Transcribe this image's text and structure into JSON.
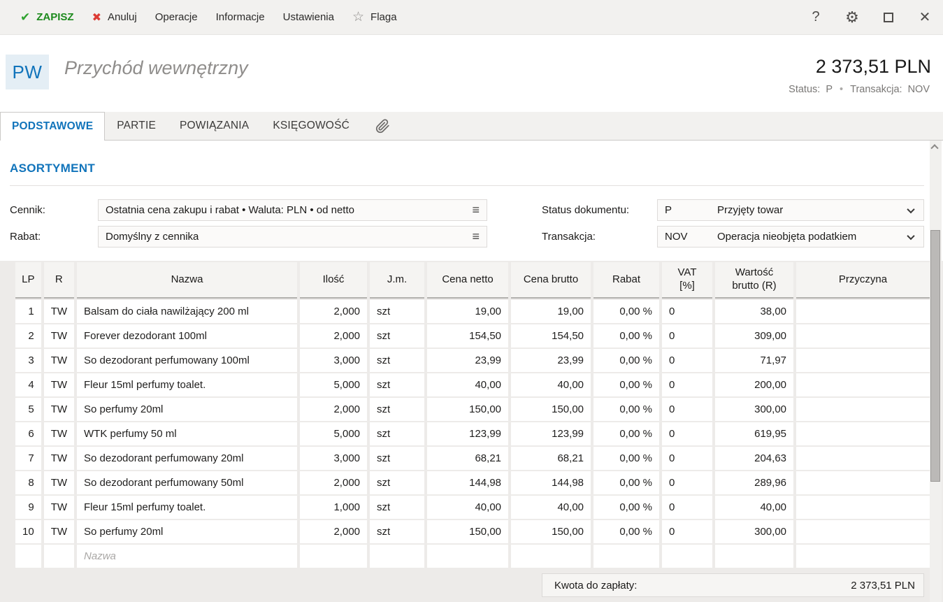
{
  "topbar": {
    "save": "ZAPISZ",
    "cancel": "Anuluj",
    "operations": "Operacje",
    "information": "Informacje",
    "settings": "Ustawienia",
    "flag": "Flaga",
    "check_icon": "✔",
    "x_icon": "✖",
    "star_icon": "☆",
    "help": "?",
    "gear_icon": "⚙",
    "close_icon": "✕"
  },
  "header": {
    "doc_type_badge": "PW",
    "title": "Przychód wewnętrzny",
    "amount": "2 373,51 PLN",
    "status_label": "Status:",
    "status_value": "P",
    "dot": "•",
    "transaction_label": "Transakcja:",
    "transaction_value": "NOV"
  },
  "tabs": [
    {
      "label": "PODSTAWOWE",
      "active": true
    },
    {
      "label": "PARTIE",
      "active": false
    },
    {
      "label": "POWIĄZANIA",
      "active": false
    },
    {
      "label": "KSIĘGOWOŚĆ",
      "active": false
    }
  ],
  "section_title": "ASORTYMENT",
  "form": {
    "cennik_label": "Cennik:",
    "cennik_value": "Ostatnia cena zakupu i rabat  • Waluta: PLN • od netto",
    "rabat_label": "Rabat:",
    "rabat_value": "Domyślny z cennika",
    "burger_icon": "≡",
    "status_label": "Status dokumentu:",
    "status_code": "P",
    "status_text": "Przyjęty towar",
    "transakcja_label": "Transakcja:",
    "transakcja_code": "NOV",
    "transakcja_text": "Operacja nieobjęta podatkiem"
  },
  "table": {
    "columns": [
      "LP",
      "R",
      "Nazwa",
      "Ilość",
      "J.m.",
      "Cena netto",
      "Cena brutto",
      "Rabat",
      "VAT\n[%]",
      "Wartość\nbrutto (R)",
      "Przyczyna"
    ],
    "rows": [
      [
        "1",
        "TW",
        "Balsam do ciała nawilżający 200 ml",
        "2,000",
        "szt",
        "19,00",
        "19,00",
        "0,00 %",
        "0",
        "38,00",
        ""
      ],
      [
        "2",
        "TW",
        "Forever dezodorant 100ml",
        "2,000",
        "szt",
        "154,50",
        "154,50",
        "0,00 %",
        "0",
        "309,00",
        ""
      ],
      [
        "3",
        "TW",
        "So dezodorant perfumowany 100ml",
        "3,000",
        "szt",
        "23,99",
        "23,99",
        "0,00 %",
        "0",
        "71,97",
        ""
      ],
      [
        "4",
        "TW",
        "Fleur 15ml perfumy toalet.",
        "5,000",
        "szt",
        "40,00",
        "40,00",
        "0,00 %",
        "0",
        "200,00",
        ""
      ],
      [
        "5",
        "TW",
        "So perfumy 20ml",
        "2,000",
        "szt",
        "150,00",
        "150,00",
        "0,00 %",
        "0",
        "300,00",
        ""
      ],
      [
        "6",
        "TW",
        "WTK perfumy 50 ml",
        "5,000",
        "szt",
        "123,99",
        "123,99",
        "0,00 %",
        "0",
        "619,95",
        ""
      ],
      [
        "7",
        "TW",
        "So dezodorant perfumowany 20ml",
        "3,000",
        "szt",
        "68,21",
        "68,21",
        "0,00 %",
        "0",
        "204,63",
        ""
      ],
      [
        "8",
        "TW",
        "So dezodorant perfumowany 50ml",
        "2,000",
        "szt",
        "144,98",
        "144,98",
        "0,00 %",
        "0",
        "289,96",
        ""
      ],
      [
        "9",
        "TW",
        "Fleur 15ml perfumy toalet.",
        "1,000",
        "szt",
        "40,00",
        "40,00",
        "0,00 %",
        "0",
        "40,00",
        ""
      ],
      [
        "10",
        "TW",
        "So perfumy 20ml",
        "2,000",
        "szt",
        "150,00",
        "150,00",
        "0,00 %",
        "0",
        "300,00",
        ""
      ]
    ],
    "new_row_placeholder": "Nazwa"
  },
  "footer": {
    "label": "Kwota do zapłaty:",
    "value": "2 373,51 PLN"
  }
}
